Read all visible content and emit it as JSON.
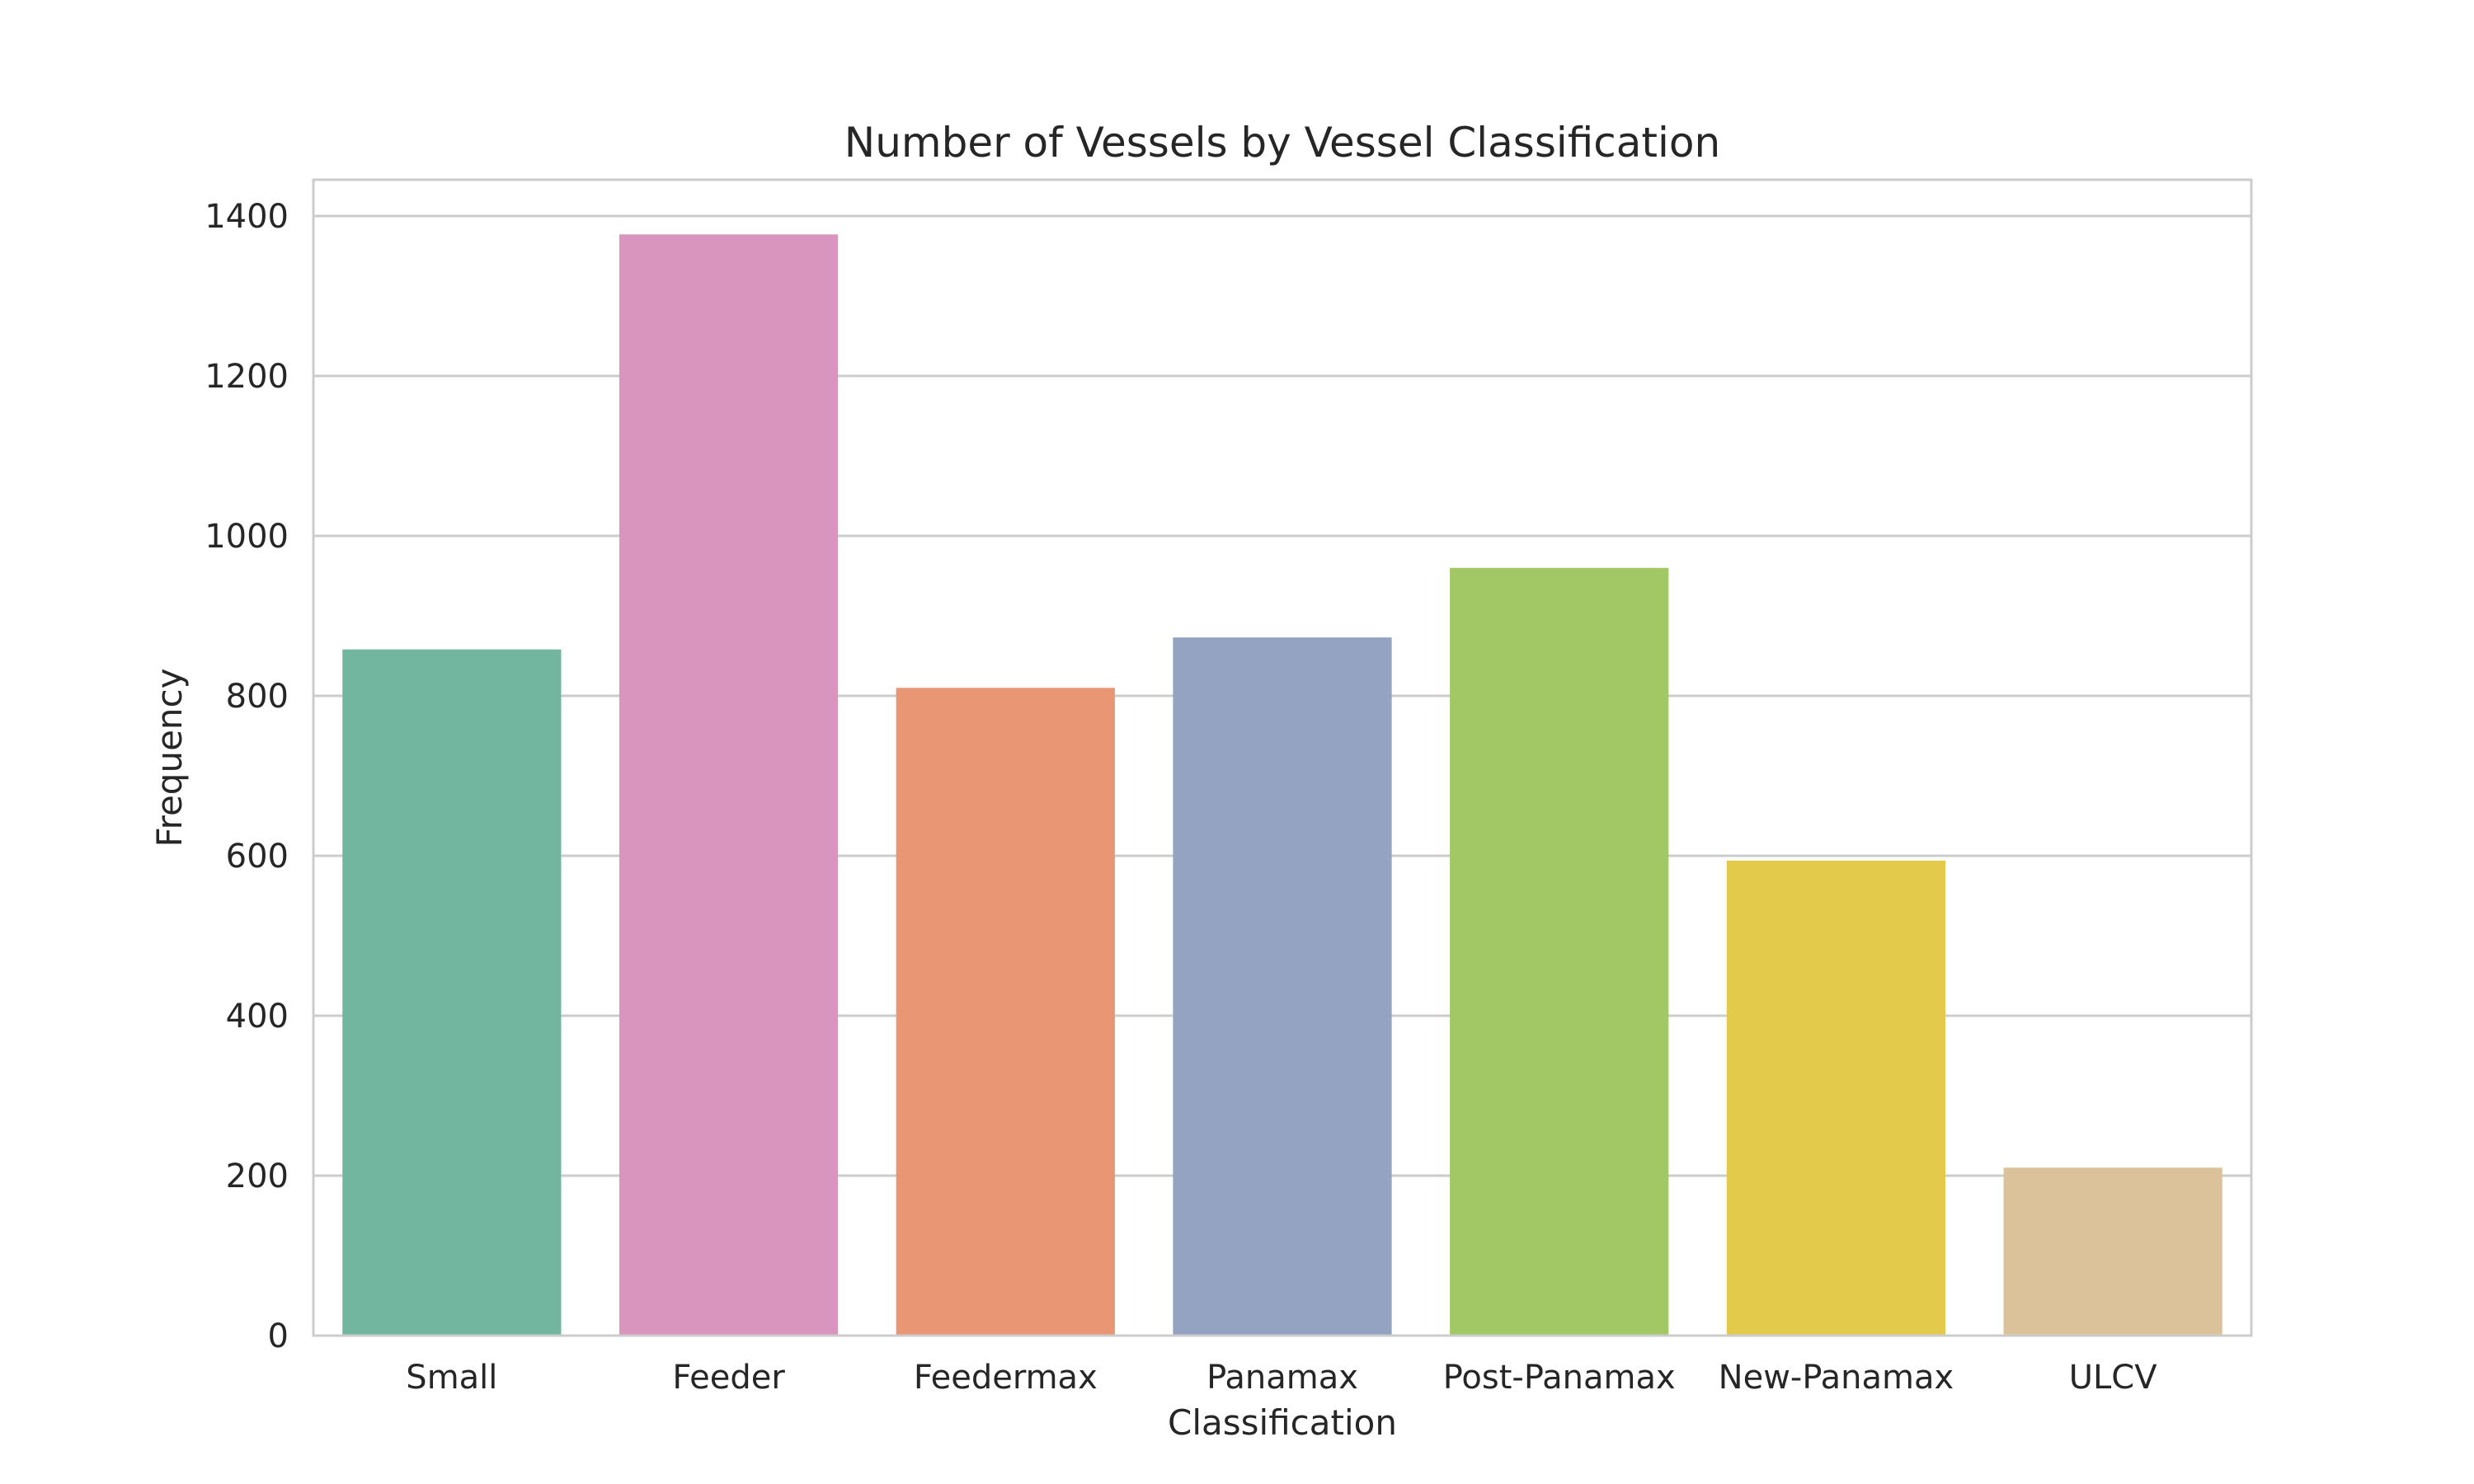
{
  "chart_data": {
    "type": "bar",
    "title": "Number of Vessels by Vessel Classification",
    "xlabel": "Classification",
    "ylabel": "Frequency",
    "categories": [
      "Small",
      "Feeder",
      "Feedermax",
      "Panamax",
      "Post-Panamax",
      "New-Panamax",
      "ULCV"
    ],
    "values": [
      858,
      1377,
      810,
      873,
      960,
      594,
      210
    ],
    "colors": [
      "#73b6a0",
      "#da95bf",
      "#e89674",
      "#94a3c2",
      "#a2c866",
      "#e4ca4a",
      "#dbc29b"
    ],
    "ylim": [
      0,
      1450
    ],
    "yticks": [
      0,
      200,
      400,
      600,
      800,
      1000,
      1200,
      1400
    ],
    "grid": "horizontal"
  }
}
